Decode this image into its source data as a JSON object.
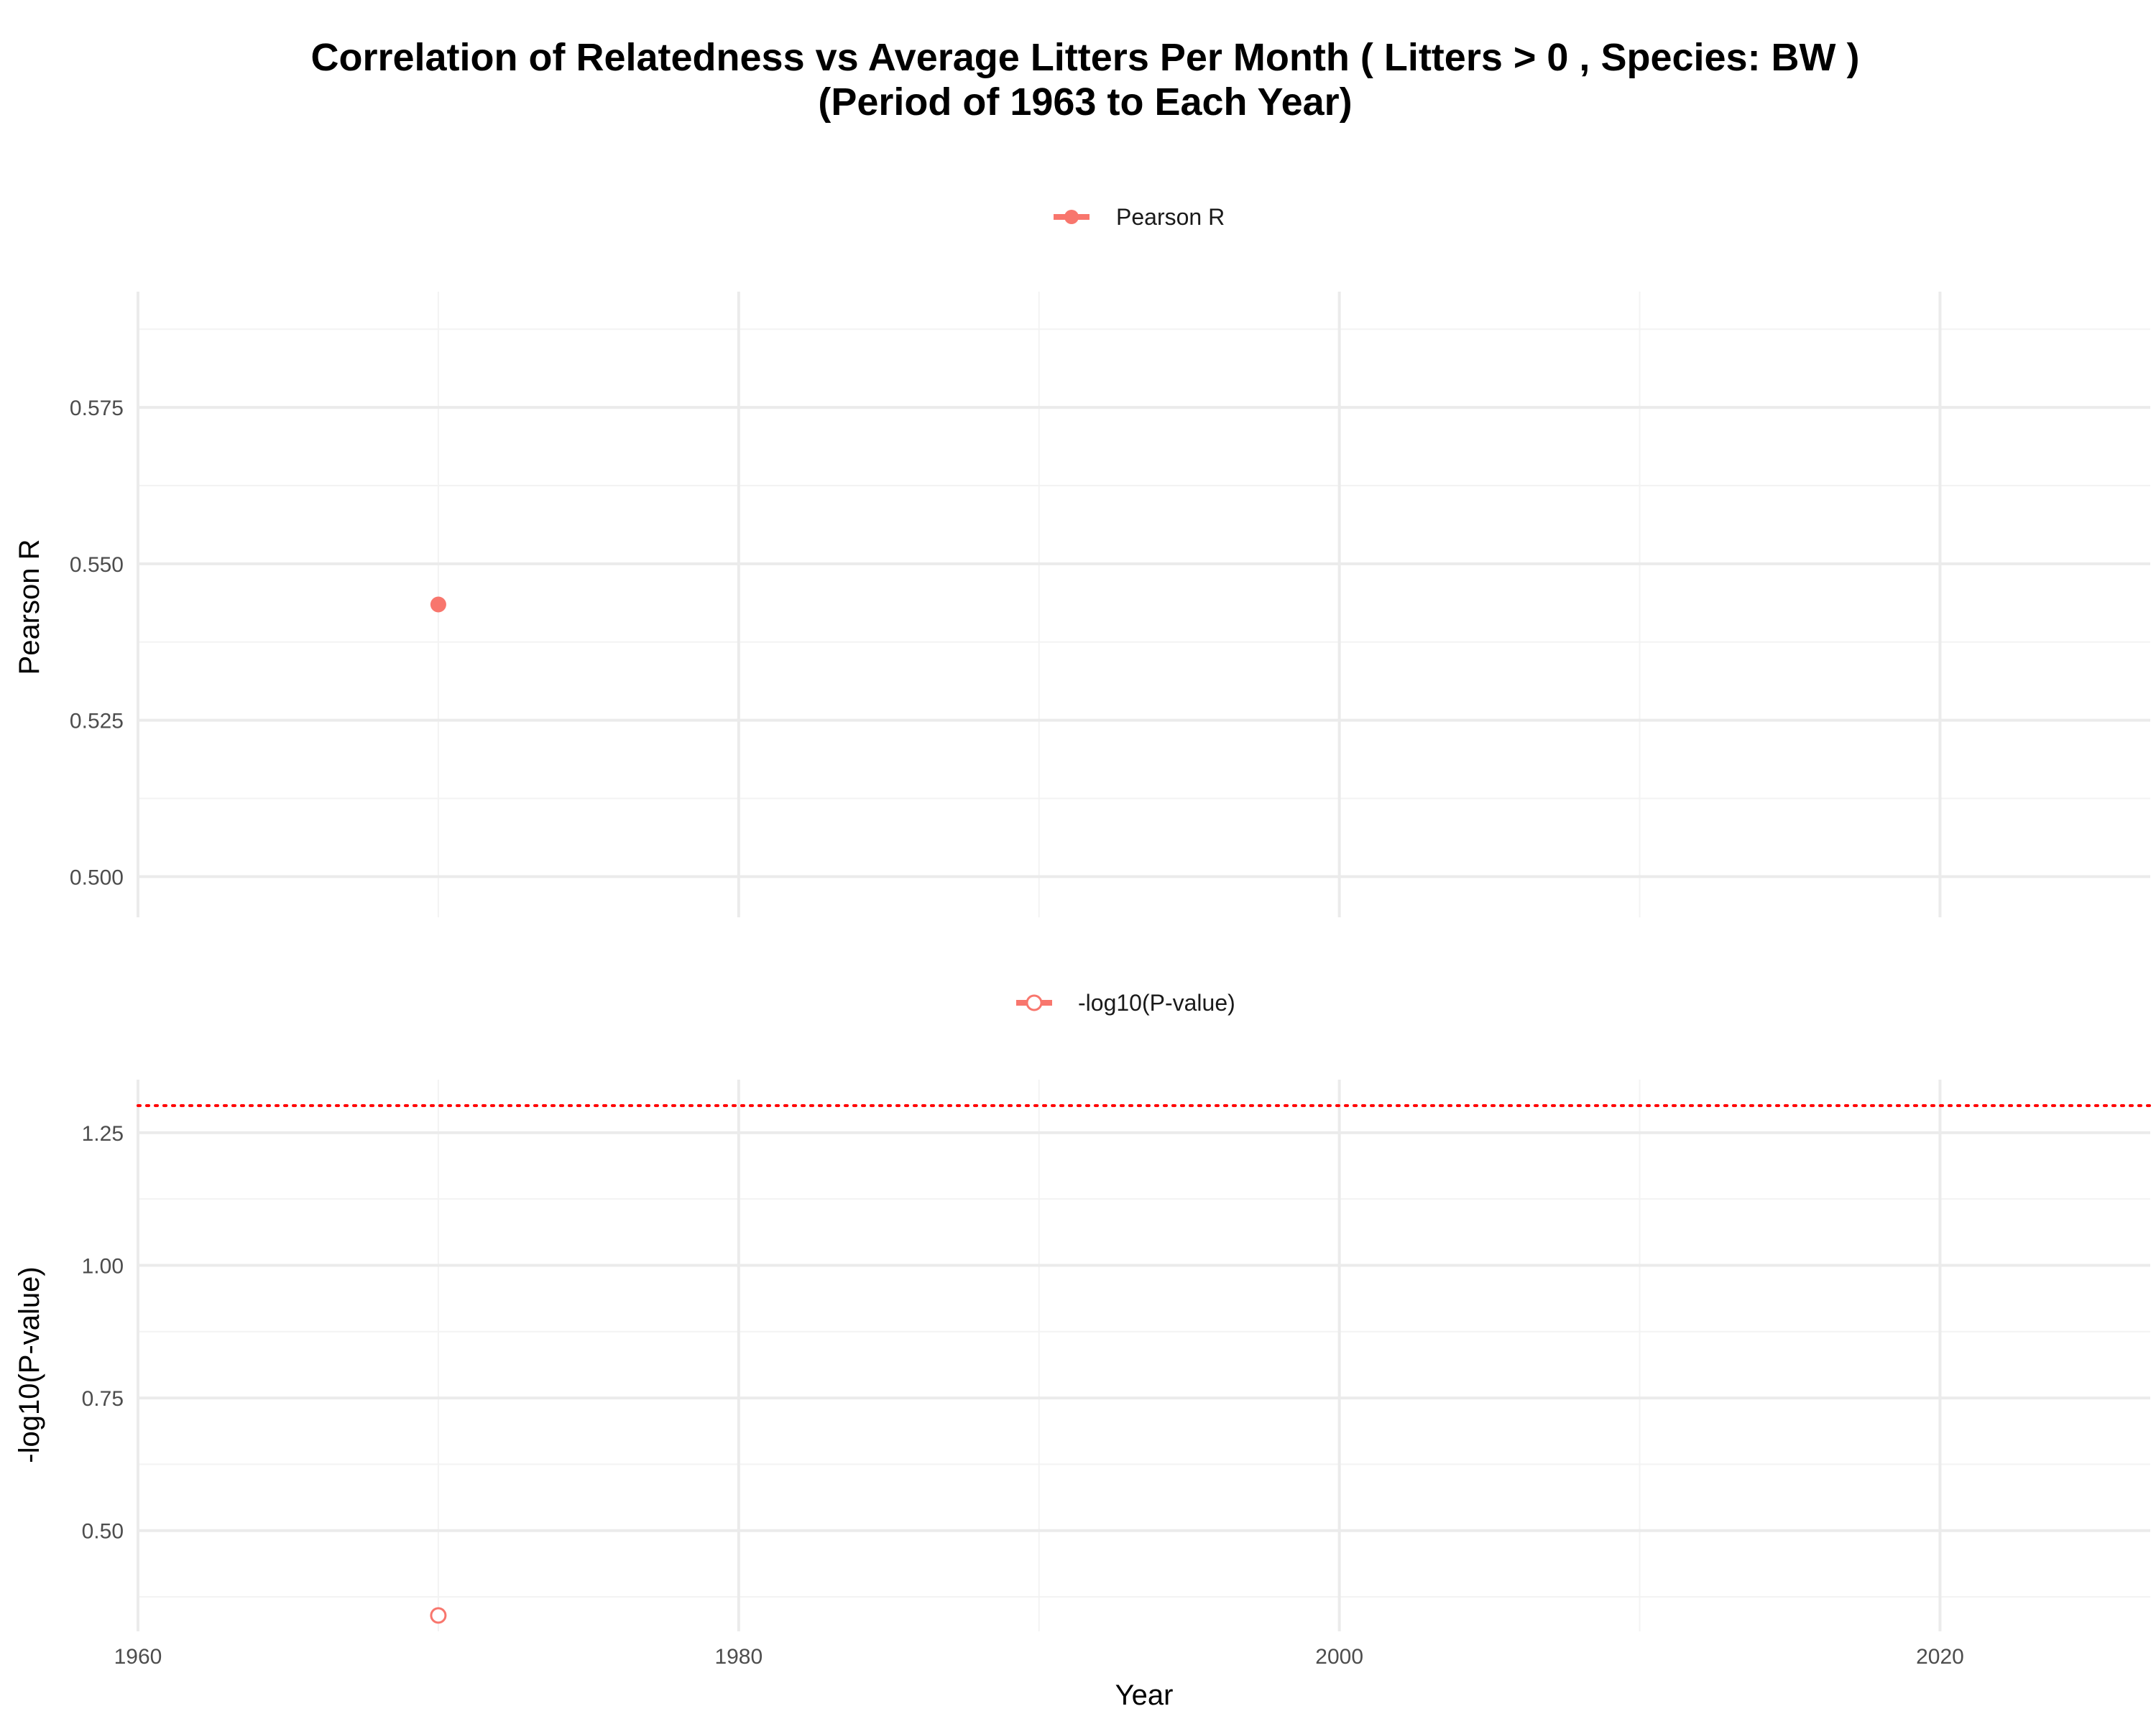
{
  "chart_data": {
    "type": "scatter",
    "title": "Correlation of Relatedness vs Average Litters Per Month ( Litters > 0 , Species: BW )",
    "subtitle": "(Period of 1963 to Each Year)",
    "xlabel": "Year",
    "xlim": [
      1960,
      2027
    ],
    "x_ticks": [
      "1960",
      "1980",
      "2000",
      "2020"
    ],
    "grid": true,
    "legend_position": "top",
    "accent_color": "#f8766d",
    "panels": [
      {
        "ylabel": "Pearson R",
        "ylim": [
          0.4935,
          0.5935
        ],
        "y_ticks": [
          "0.500",
          "0.525",
          "0.550",
          "0.575"
        ],
        "series": [
          {
            "name": "Pearson R",
            "marker": "filled-circle",
            "x": [
              1970
            ],
            "y": [
              0.5435
            ]
          }
        ]
      },
      {
        "ylabel": "-log10(P-value)",
        "ylim": [
          0.31,
          1.35
        ],
        "y_ticks": [
          "0.50",
          "0.75",
          "1.00",
          "1.25"
        ],
        "series": [
          {
            "name": "-log10(P-value)",
            "marker": "open-circle",
            "x": [
              1970
            ],
            "y": [
              0.34
            ]
          }
        ],
        "reference_line": {
          "y": 1.30103,
          "style": "dotted",
          "color": "#ff0000"
        }
      }
    ]
  }
}
